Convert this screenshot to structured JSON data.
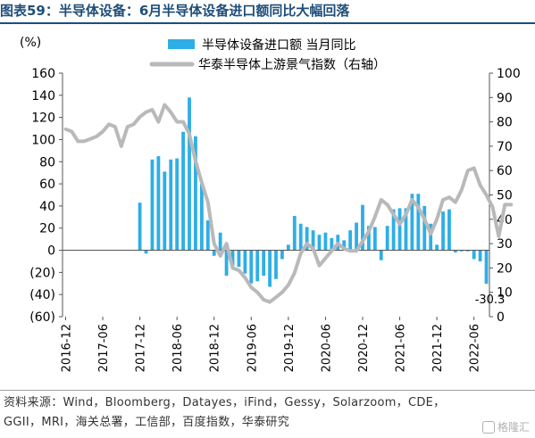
{
  "title": "图表59：半导体设备：6月半导体设备进口额同比大幅回落",
  "source": "资料来源：Wind，Bloomberg，Datayes，iFind，Gessy，Solarzoom，CDE，GGII，MRI，海关总署，工信部，百度指数，华泰研究",
  "watermark": "格隆汇",
  "chart_data": {
    "type": "bar",
    "left_unit": "(%)",
    "left_ylim": [
      -60,
      160
    ],
    "left_ticks": [
      "(60)",
      "(40)",
      "(20)",
      "0",
      "20",
      "40",
      "60",
      "80",
      "100",
      "120",
      "140",
      "160"
    ],
    "right_ylim": [
      0,
      100
    ],
    "right_ticks": [
      "0",
      "10",
      "20",
      "30",
      "40",
      "50",
      "60",
      "70",
      "80",
      "90",
      "100"
    ],
    "x_tick_labels": [
      "2016-12",
      "2017-06",
      "2017-12",
      "2018-06",
      "2018-12",
      "2019-06",
      "2019-12",
      "2020-06",
      "2020-12",
      "2021-06",
      "2021-12",
      "2022-06"
    ],
    "annotation": "-30.3",
    "series": [
      {
        "name": "半导体设备进口额 当月同比",
        "type": "bar",
        "axis": "left",
        "color": "#2eaee6",
        "values": [
          null,
          null,
          null,
          null,
          null,
          null,
          null,
          null,
          null,
          null,
          null,
          null,
          43,
          -3,
          82,
          85,
          71,
          82,
          83,
          107,
          138,
          103,
          60,
          27,
          -5,
          16,
          -23,
          -14,
          -15,
          -21,
          -30,
          -28,
          -23,
          -33,
          -26,
          -8,
          5,
          31,
          24,
          21,
          18,
          14,
          16,
          11,
          14,
          9,
          18,
          25,
          41,
          22,
          21,
          -9,
          22,
          37,
          38,
          38,
          51,
          51,
          40,
          24,
          5,
          35,
          37,
          -2,
          -1,
          -1,
          -8,
          -10,
          -30.3
        ]
      },
      {
        "name": "华泰半导体上游景气指数（右轴）",
        "type": "line",
        "axis": "right",
        "color": "#b9b9b9",
        "values": [
          77,
          76,
          72,
          72,
          73,
          74,
          76,
          79,
          78,
          70,
          78,
          79,
          82,
          84,
          85,
          80,
          87,
          84,
          80,
          80,
          75,
          64,
          55,
          47,
          30,
          25,
          30,
          20,
          19,
          16,
          12,
          10,
          7,
          6,
          8,
          10,
          13,
          18,
          26,
          30,
          28,
          21,
          24,
          27,
          30,
          28,
          27,
          27,
          31,
          35,
          41,
          48,
          46,
          42,
          38,
          42,
          48,
          45,
          40,
          34,
          40,
          48,
          49,
          47,
          52,
          60,
          61,
          54,
          50,
          45,
          33,
          46,
          46
        ]
      }
    ]
  }
}
